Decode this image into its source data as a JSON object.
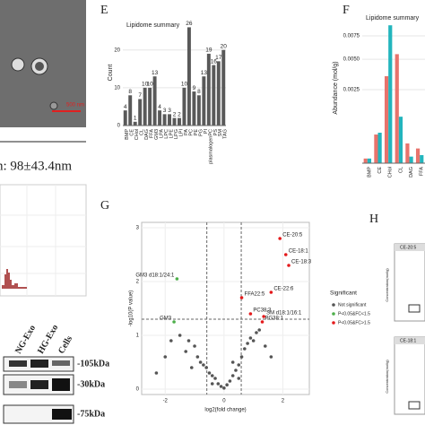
{
  "panel_letters": [
    "E",
    "F",
    "G",
    "H"
  ],
  "tem": {
    "scale_bar": "500 nm",
    "size_stat": "n: 98±43.4nm"
  },
  "blot": {
    "lanes": [
      "NG-Exo",
      "HG-Exo",
      "Cells"
    ],
    "markers": [
      "-105kDa",
      "-30kDa",
      "-75kDa"
    ]
  },
  "boxplots": {
    "titles": [
      "CE-20:5",
      "CE-18:1"
    ],
    "ylabel": "Concentration(mol/g)"
  },
  "chart_data": [
    {
      "type": "bar",
      "title": "Lipidome summary",
      "ylabel": "Count",
      "categories": [
        "BMP",
        "CE",
        "CHol",
        "CL",
        "DAG",
        "FFA",
        "GM3",
        "LPA",
        "LPC",
        "LPE",
        "LPG",
        "LPI",
        "PA",
        "PC",
        "PE",
        "PG",
        "PI",
        "plasmalogenPC",
        "PS",
        "SM",
        "TAG"
      ],
      "values": [
        4,
        8,
        1,
        7,
        10,
        10,
        13,
        4,
        3,
        3,
        2,
        2,
        10,
        26,
        9,
        8,
        13,
        19,
        16,
        17,
        20
      ],
      "color": "#595959",
      "ylim": [
        0,
        28
      ],
      "yticks": [
        0,
        10,
        20
      ],
      "grid": true
    },
    {
      "type": "bar",
      "title": "Lipidome summary",
      "ylabel": "Abundance (mol/g)",
      "categories": [
        "BMP",
        "CE",
        "CHol",
        "CL",
        "DAG",
        "FFA"
      ],
      "series": [
        {
          "color": "#e8736c",
          "values": [
            1e-05,
            0.00038,
            0.0035,
            0.0055,
            0.00018,
            0.0001
          ]
        },
        {
          "color": "#22b5bd",
          "values": [
            1e-05,
            0.00043,
            0.0088,
            0.001,
            2e-05,
            3e-05
          ]
        }
      ],
      "ylim": [
        0,
        0.0105
      ],
      "yscale": "sqrt",
      "yticks": [
        0.0025,
        {
          "value": 0.005,
          "label": "0.0050"
        },
        0.0075
      ],
      "grid": true
    },
    {
      "type": "scatter",
      "xlabel": "log2(fold change)",
      "ylabel": "-log10(P value)",
      "xlim": [
        -2.8,
        2.9
      ],
      "ylim": [
        -0.1,
        3.1
      ],
      "xticks": [
        -2,
        0,
        2
      ],
      "yticks": [
        0,
        1,
        2,
        3
      ],
      "grid": true,
      "thresholds": {
        "x": [
          -0.585,
          0.585
        ],
        "y": 1.3
      },
      "legend_title": "Significant",
      "legend": "right",
      "series": [
        {
          "name": "Not significant",
          "color": "#555555",
          "x": [
            -2.3,
            -2,
            -1.8,
            -1.5,
            -1.3,
            -1.2,
            -1,
            -0.9,
            -0.8,
            -0.7,
            -0.6,
            -0.5,
            -0.4,
            -0.3,
            -0.2,
            -0.1,
            0,
            0.1,
            0.2,
            0.3,
            0.4,
            0.5,
            0.6,
            0.7,
            0.8,
            0.9,
            1,
            1.1,
            1.2,
            1.4,
            1.6,
            -1.1,
            0.5,
            -0.4,
            0.3
          ],
          "y": [
            0.3,
            0.6,
            0.9,
            1.0,
            0.7,
            0.9,
            0.8,
            0.6,
            0.5,
            0.45,
            0.4,
            0.3,
            0.25,
            0.2,
            0.1,
            0.05,
            0.02,
            0.08,
            0.15,
            0.25,
            0.35,
            0.45,
            0.6,
            0.75,
            0.85,
            0.95,
            0.9,
            1.05,
            1.1,
            0.8,
            0.6,
            0.4,
            0.2,
            0.1,
            0.5
          ]
        },
        {
          "name": "P<0.05&FC<1.5",
          "color": "#4daf4a",
          "x": [
            -1.6,
            -1.7
          ],
          "y": [
            2.05,
            1.25
          ],
          "labels": [
            "GM3 d18:1/24:1",
            "GM3"
          ]
        },
        {
          "name": "P<0.05&FC>1.5",
          "color": "#e41a1c",
          "x": [
            1.9,
            2.1,
            2.2,
            1.6,
            0.6,
            0.9,
            1.35,
            1.3
          ],
          "y": [
            2.8,
            2.5,
            2.3,
            1.8,
            1.7,
            1.4,
            1.35,
            1.25
          ],
          "labels": [
            "CE-20:5",
            "CE-18:1",
            "CE-18:3",
            "CE-22:6",
            "FFA22:5",
            "PC38:3",
            "SM d18:1/16:1",
            "PG38:1"
          ]
        }
      ]
    }
  ]
}
